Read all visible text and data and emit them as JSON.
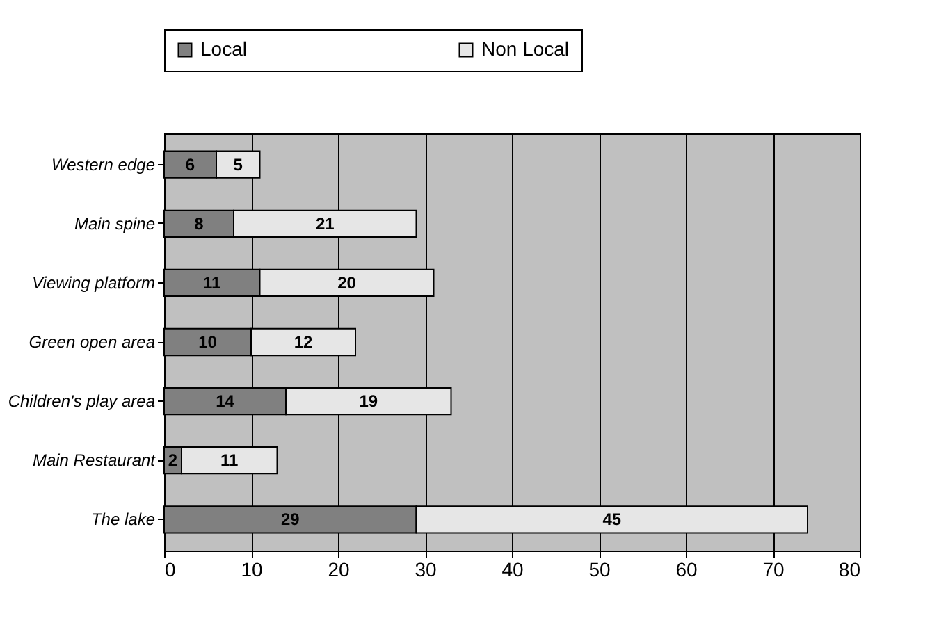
{
  "chart_data": {
    "type": "bar",
    "orientation": "horizontal",
    "stacked": true,
    "categories": [
      "Western edge",
      "Main spine",
      "Viewing platform",
      "Green open area",
      "Children's play area",
      "Main Restaurant",
      "The lake"
    ],
    "series": [
      {
        "name": "Local",
        "color": "#808080",
        "values": [
          6,
          8,
          11,
          10,
          14,
          2,
          29
        ]
      },
      {
        "name": "Non Local",
        "color": "#e6e6e6",
        "values": [
          5,
          21,
          20,
          12,
          19,
          11,
          45
        ]
      }
    ],
    "xlim": [
      0,
      80
    ],
    "xticks": [
      0,
      10,
      20,
      30,
      40,
      50,
      60,
      70,
      80
    ],
    "grid": "x",
    "legend": "top",
    "data_labels": true
  }
}
